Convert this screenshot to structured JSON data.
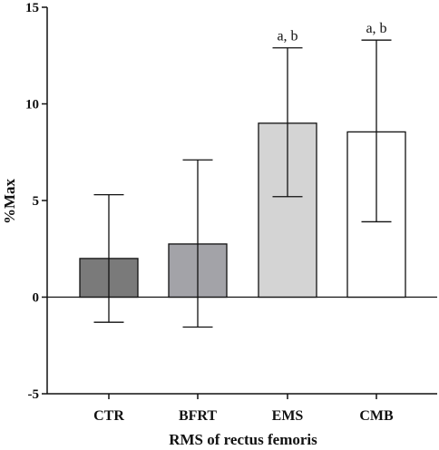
{
  "chart_data": {
    "type": "bar",
    "categories": [
      "CTR",
      "BFRT",
      "EMS",
      "CMB"
    ],
    "values": [
      2.0,
      2.75,
      9.0,
      8.55
    ],
    "error_low": [
      -1.3,
      -1.55,
      5.2,
      3.9
    ],
    "error_high": [
      5.3,
      7.1,
      12.9,
      13.3
    ],
    "annotations": [
      "",
      "",
      "a, b",
      "a, b"
    ],
    "bar_colors": [
      "#7a7a7a",
      "#a3a3a8",
      "#d4d4d4",
      "#ffffff"
    ],
    "xlabel": "RMS of rectus femoris",
    "ylabel": "%Max",
    "ylim": [
      -5,
      15
    ],
    "yticks": [
      -5,
      0,
      5,
      10,
      15
    ],
    "ytick_labels": [
      "-5",
      "0",
      "5",
      "10",
      "15"
    ]
  }
}
